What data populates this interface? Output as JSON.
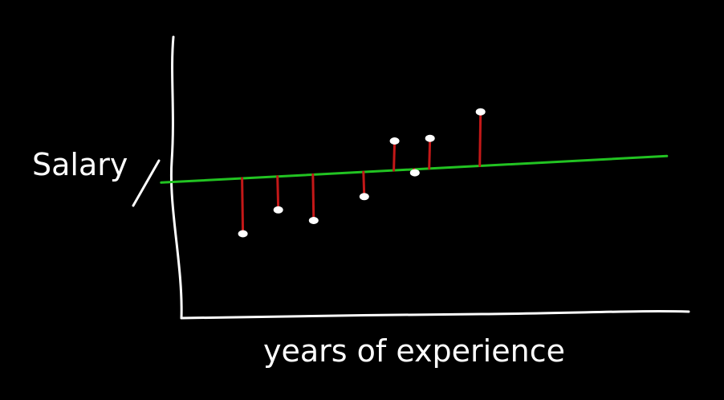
{
  "colors": {
    "background": "#000000",
    "axes": "#ffffff",
    "regression_line": "#22c322",
    "residuals": "#c41818",
    "points": "#ffffff"
  },
  "chart_data": {
    "type": "scatter",
    "title": "",
    "xlabel": "years of experience",
    "ylabel": "Salary",
    "grid": false,
    "legend": "none",
    "xlim": [
      0,
      10
    ],
    "ylim": [
      0,
      10
    ],
    "regression_line": {
      "intercept": 4.97,
      "slope": 0.1,
      "x_start": -0.4,
      "x_end": 9.6
    },
    "points": [
      {
        "x": 1.2,
        "y": 3.0
      },
      {
        "x": 1.9,
        "y": 3.9
      },
      {
        "x": 2.6,
        "y": 3.5
      },
      {
        "x": 3.6,
        "y": 4.4
      },
      {
        "x": 4.2,
        "y": 6.5
      },
      {
        "x": 4.6,
        "y": 5.3
      },
      {
        "x": 4.9,
        "y": 6.6
      },
      {
        "x": 5.9,
        "y": 7.6
      }
    ]
  }
}
